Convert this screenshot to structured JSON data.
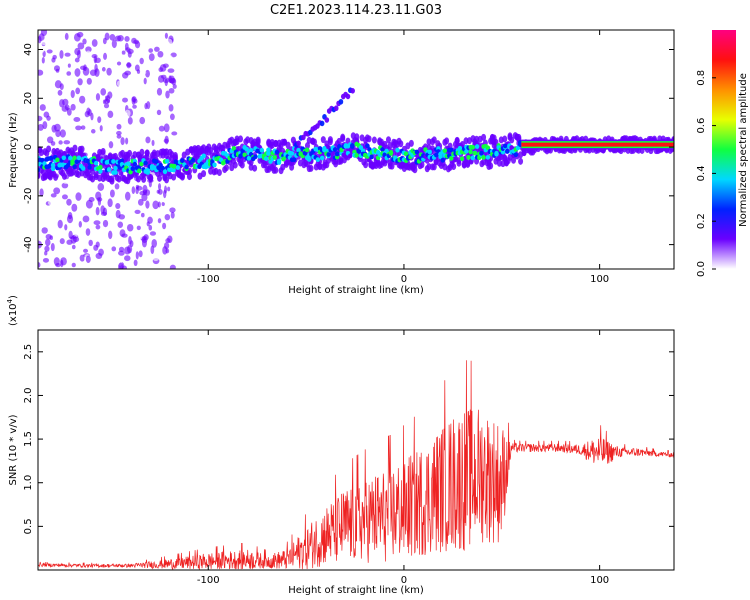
{
  "figure": {
    "title": "C2E1.2023.114.23.11.G03"
  },
  "colorbar": {
    "label": "Normalized spectral amplitude",
    "ticks": [
      "0.0",
      "0.2",
      "0.4",
      "0.6",
      "0.8"
    ],
    "tick_values": [
      0.0,
      0.2,
      0.4,
      0.6,
      0.8
    ],
    "range": [
      0,
      1
    ],
    "colors": [
      "#ffffff",
      "#6a00ff",
      "#0022ff",
      "#00d8ff",
      "#10ff40",
      "#e8ff00",
      "#ff9000",
      "#ff1010",
      "#ff0080"
    ]
  },
  "chart_data": [
    {
      "type": "heatmap",
      "name": "spectrogram",
      "xlabel": "Height of straight line (km)",
      "ylabel": "Frequency (Hz)",
      "xlim": [
        -187,
        138
      ],
      "ylim": [
        -50,
        48
      ],
      "x_ticks": [
        -100,
        0,
        100
      ],
      "x_tick_labels": [
        "-100",
        "0",
        "100"
      ],
      "y_ticks": [
        -40,
        -20,
        0,
        20,
        40
      ],
      "y_tick_labels": [
        "-40",
        "-20",
        "0",
        "20",
        "40"
      ],
      "ridge": {
        "x": [
          -187,
          -170,
          -150,
          -130,
          -110,
          -95,
          -85,
          -75,
          -65,
          -55,
          -45,
          -35,
          -25,
          -15,
          -5,
          5,
          15,
          25,
          35,
          45,
          55,
          65,
          75,
          90,
          105,
          120,
          138
        ],
        "y": [
          -7,
          -6,
          -8,
          -8,
          -7,
          -5,
          -2,
          -3,
          -4,
          -3,
          -3,
          -2,
          -1,
          -2,
          -3,
          -4,
          -3,
          -3,
          -2,
          -2,
          -1,
          0,
          1,
          1,
          1,
          1,
          1
        ]
      },
      "branch": {
        "x": [
          -55,
          -45,
          -35,
          -25
        ],
        "y": [
          2,
          8,
          16,
          25
        ]
      }
    },
    {
      "type": "line",
      "name": "snr",
      "xlabel": "Height of straight line (km)",
      "ylabel": "SNR (10 * v/v)",
      "multiplier": "(x10",
      "multiplier_exp": "4",
      "xlim": [
        -187,
        138
      ],
      "ylim": [
        0.0,
        2.75
      ],
      "x_ticks": [
        -100,
        0,
        100
      ],
      "x_tick_labels": [
        "-100",
        "0",
        "100"
      ],
      "y_ticks": [
        0.5,
        1.0,
        1.5,
        2.0,
        2.5
      ],
      "y_tick_labels": [
        "0.5",
        "1.0",
        "1.5",
        "2.0",
        "2.5"
      ],
      "series": [
        {
          "color": "#ee2222",
          "envelope": {
            "x": [
              -187,
              -160,
              -140,
              -120,
              -100,
              -80,
              -70,
              -60,
              -50,
              -40,
              -30,
              -20,
              -10,
              0,
              10,
              20,
              30,
              40,
              50,
              55,
              60,
              70,
              80,
              90,
              100,
              110,
              120,
              130,
              138
            ],
            "base": [
              0.06,
              0.05,
              0.05,
              0.07,
              0.1,
              0.12,
              0.1,
              0.12,
              0.25,
              0.4,
              0.5,
              0.58,
              0.62,
              0.7,
              0.8,
              0.95,
              1.05,
              1.1,
              1.0,
              1.4,
              1.4,
              1.4,
              1.4,
              1.38,
              1.35,
              1.35,
              1.35,
              1.33,
              1.32
            ],
            "amp": [
              0.02,
              0.02,
              0.02,
              0.06,
              0.1,
              0.12,
              0.08,
              0.12,
              0.25,
              0.35,
              0.45,
              0.5,
              0.55,
              0.6,
              0.65,
              0.75,
              0.85,
              0.8,
              0.7,
              0.06,
              0.05,
              0.05,
              0.05,
              0.06,
              0.2,
              0.06,
              0.05,
              0.03,
              0.03
            ]
          }
        }
      ]
    }
  ]
}
